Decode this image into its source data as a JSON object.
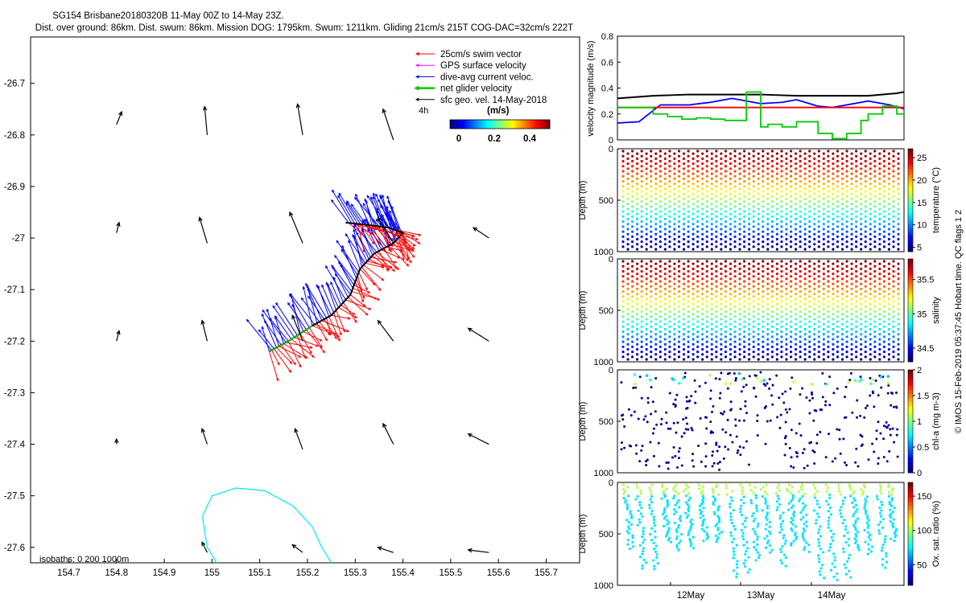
{
  "title_lines": [
    "SG154 Brisbane20180320B 11-May 00Z to 14-May 23Z.",
    "Dist. over ground: 86km. Dist. swum: 86km. Mission DOG: 1795km. Swum: 1211km. Gliding 21cm/s 215T COG-DAC=32cm/s 222T"
  ],
  "side_caption": "© IMOS 15-Feb-2019 05:37:45 Hobart time. QC flags 1  2",
  "map": {
    "x_ticks": [
      "154.7",
      "154.8",
      "154.9",
      "155",
      "155.1",
      "155.2",
      "155.3",
      "155.4",
      "155.5",
      "155.6",
      "155.7"
    ],
    "y_ticks": [
      "-26.7",
      "-26.8",
      "-26.9",
      "-27",
      "-27.1",
      "-27.2",
      "-27.3",
      "-27.4",
      "-27.5",
      "-27.6"
    ],
    "xlim": [
      154.62,
      155.77
    ],
    "ylim": [
      -27.63,
      -26.61
    ],
    "legend": [
      {
        "label": "25cm/s swim vector",
        "color": "#ff0000"
      },
      {
        "label": "GPS surface velocity",
        "color": "#ff00ff"
      },
      {
        "label": "dive-avg current veloc.",
        "color": "#0000ff"
      },
      {
        "label": "net glider velocity",
        "color": "#00cc00"
      },
      {
        "label": "sfc geo. vel. 14-May-2018",
        "color": "#000000"
      }
    ],
    "colorbar": {
      "label": "(m/s)",
      "ticks": [
        "0",
        "0.2",
        "0.4"
      ],
      "note": "4h"
    },
    "isobath_label": "isobaths: 0    200  1000m",
    "geo_vectors": [
      {
        "lon": 154.8,
        "lat": -26.78,
        "u": 0.01,
        "v": 0.025
      },
      {
        "lon": 154.99,
        "lat": -26.8,
        "u": -0.005,
        "v": 0.055
      },
      {
        "lon": 155.19,
        "lat": -26.8,
        "u": -0.01,
        "v": 0.06
      },
      {
        "lon": 155.38,
        "lat": -26.81,
        "u": -0.02,
        "v": 0.06
      },
      {
        "lon": 154.8,
        "lat": -26.99,
        "u": 0.005,
        "v": 0.02
      },
      {
        "lon": 154.99,
        "lat": -27.01,
        "u": -0.015,
        "v": 0.05
      },
      {
        "lon": 155.19,
        "lat": -27.01,
        "u": -0.025,
        "v": 0.06
      },
      {
        "lon": 155.38,
        "lat": -27.01,
        "u": -0.03,
        "v": 0.05
      },
      {
        "lon": 155.58,
        "lat": -27.0,
        "u": -0.03,
        "v": 0.02
      },
      {
        "lon": 154.8,
        "lat": -27.2,
        "u": 0.005,
        "v": 0.02
      },
      {
        "lon": 154.99,
        "lat": -27.2,
        "u": -0.01,
        "v": 0.04
      },
      {
        "lon": 155.19,
        "lat": -27.2,
        "u": -0.02,
        "v": 0.05
      },
      {
        "lon": 155.38,
        "lat": -27.2,
        "u": -0.03,
        "v": 0.04
      },
      {
        "lon": 155.58,
        "lat": -27.2,
        "u": -0.04,
        "v": 0.025
      },
      {
        "lon": 154.8,
        "lat": -27.4,
        "u": 0.0,
        "v": 0.01
      },
      {
        "lon": 154.99,
        "lat": -27.4,
        "u": -0.01,
        "v": 0.03
      },
      {
        "lon": 155.19,
        "lat": -27.41,
        "u": -0.015,
        "v": 0.04
      },
      {
        "lon": 155.38,
        "lat": -27.4,
        "u": -0.02,
        "v": 0.04
      },
      {
        "lon": 155.58,
        "lat": -27.4,
        "u": -0.04,
        "v": 0.02
      },
      {
        "lon": 154.99,
        "lat": -27.61,
        "u": -0.01,
        "v": 0.02
      },
      {
        "lon": 155.19,
        "lat": -27.61,
        "u": -0.02,
        "v": 0.015
      },
      {
        "lon": 155.38,
        "lat": -27.61,
        "u": -0.03,
        "v": 0.01
      },
      {
        "lon": 155.58,
        "lat": -27.61,
        "u": -0.04,
        "v": 0.005
      }
    ],
    "glider_track": [
      {
        "lon": 155.12,
        "lat": -27.22
      },
      {
        "lon": 155.16,
        "lat": -27.2
      },
      {
        "lon": 155.21,
        "lat": -27.17
      },
      {
        "lon": 155.25,
        "lat": -27.15
      },
      {
        "lon": 155.29,
        "lat": -27.11
      },
      {
        "lon": 155.31,
        "lat": -27.06
      },
      {
        "lon": 155.34,
        "lat": -27.03
      },
      {
        "lon": 155.38,
        "lat": -27.01
      },
      {
        "lon": 155.4,
        "lat": -26.99
      },
      {
        "lon": 155.37,
        "lat": -26.98
      },
      {
        "lon": 155.33,
        "lat": -26.975
      },
      {
        "lon": 155.28,
        "lat": -26.97
      }
    ],
    "isobath_200m": [
      {
        "lon": 155.01,
        "lat": -27.63
      },
      {
        "lon": 154.99,
        "lat": -27.6
      },
      {
        "lon": 154.98,
        "lat": -27.54
      },
      {
        "lon": 155.0,
        "lat": -27.5
      },
      {
        "lon": 155.05,
        "lat": -27.485
      },
      {
        "lon": 155.11,
        "lat": -27.49
      },
      {
        "lon": 155.17,
        "lat": -27.52
      },
      {
        "lon": 155.21,
        "lat": -27.56
      },
      {
        "lon": 155.23,
        "lat": -27.6
      },
      {
        "lon": 155.25,
        "lat": -27.63
      }
    ]
  },
  "velocity_panel": {
    "ylabel": "velocity magnitude (m/s)",
    "y_ticks": [
      "0",
      "0.2",
      "0.4",
      "0.6",
      "0.8"
    ],
    "ylim": [
      0,
      0.8
    ],
    "xlim": [
      0,
      4
    ],
    "series": [
      {
        "name": "sfc geo. vel.",
        "color": "#000000",
        "x": [
          0,
          0.5,
          1,
          1.5,
          2,
          2.5,
          3,
          3.5,
          3.9,
          4
        ],
        "y": [
          0.32,
          0.34,
          0.35,
          0.35,
          0.35,
          0.34,
          0.34,
          0.34,
          0.36,
          0.37
        ]
      },
      {
        "name": "dive-avg current veloc.",
        "color": "#0000ff",
        "x": [
          0,
          0.3,
          0.6,
          1,
          1.3,
          1.6,
          2,
          2.3,
          2.5,
          2.8,
          3,
          3.2,
          3.5,
          3.8,
          4
        ],
        "y": [
          0.13,
          0.14,
          0.27,
          0.27,
          0.29,
          0.32,
          0.28,
          0.29,
          0.31,
          0.26,
          0.25,
          0.27,
          0.3,
          0.27,
          0.24
        ]
      },
      {
        "name": "25cm/s swim vector",
        "color": "#ff0000",
        "x": [
          0,
          4
        ],
        "y": [
          0.25,
          0.25
        ]
      },
      {
        "name": "net glider velocity",
        "color": "#00cc00",
        "x": [
          0,
          0.3,
          0.5,
          0.7,
          0.9,
          1.1,
          1.3,
          1.5,
          1.8,
          2.0,
          2.1,
          2.3,
          2.5,
          2.8,
          3.0,
          3.2,
          3.4,
          3.5,
          3.7,
          3.9,
          4
        ],
        "y": [
          0.25,
          0.25,
          0.2,
          0.18,
          0.16,
          0.17,
          0.16,
          0.15,
          0.37,
          0.1,
          0.12,
          0.1,
          0.14,
          0.05,
          0.01,
          0.05,
          0.15,
          0.2,
          0.26,
          0.2,
          0.2
        ]
      }
    ]
  },
  "profile_panels": [
    {
      "ylabel": "Depth (m)",
      "cbar_label": "temperature (°C)",
      "cbar_ticks": [
        "5",
        "10",
        "15",
        "20",
        "25"
      ],
      "vmin": 4,
      "vmax": 27,
      "y_ticks": [
        "0",
        "500",
        "1000"
      ],
      "var": "temperature"
    },
    {
      "ylabel": "Depth (m)",
      "cbar_label": "salinity",
      "cbar_ticks": [
        "34.5",
        "35",
        "35.5"
      ],
      "vmin": 34.3,
      "vmax": 35.8,
      "y_ticks": [
        "0",
        "500",
        "1000"
      ],
      "var": "salinity"
    },
    {
      "ylabel": "Depth (m)",
      "cbar_label": "chl-a (mg m-3)",
      "cbar_ticks": [
        "0",
        "0.5",
        "1",
        "1.5",
        "2"
      ],
      "vmin": 0,
      "vmax": 2,
      "y_ticks": [
        "0",
        "500",
        "1000"
      ],
      "var": "chla"
    },
    {
      "ylabel": "Depth (m)",
      "cbar_label": "Ox. sat. ratio (%)",
      "cbar_ticks": [
        "50",
        "100",
        "150"
      ],
      "vmin": 20,
      "vmax": 170,
      "y_ticks": [
        "0",
        "500",
        "1000"
      ],
      "var": "oxygen"
    }
  ],
  "x_axis_dates": [
    "12May",
    "13May",
    "14May"
  ]
}
